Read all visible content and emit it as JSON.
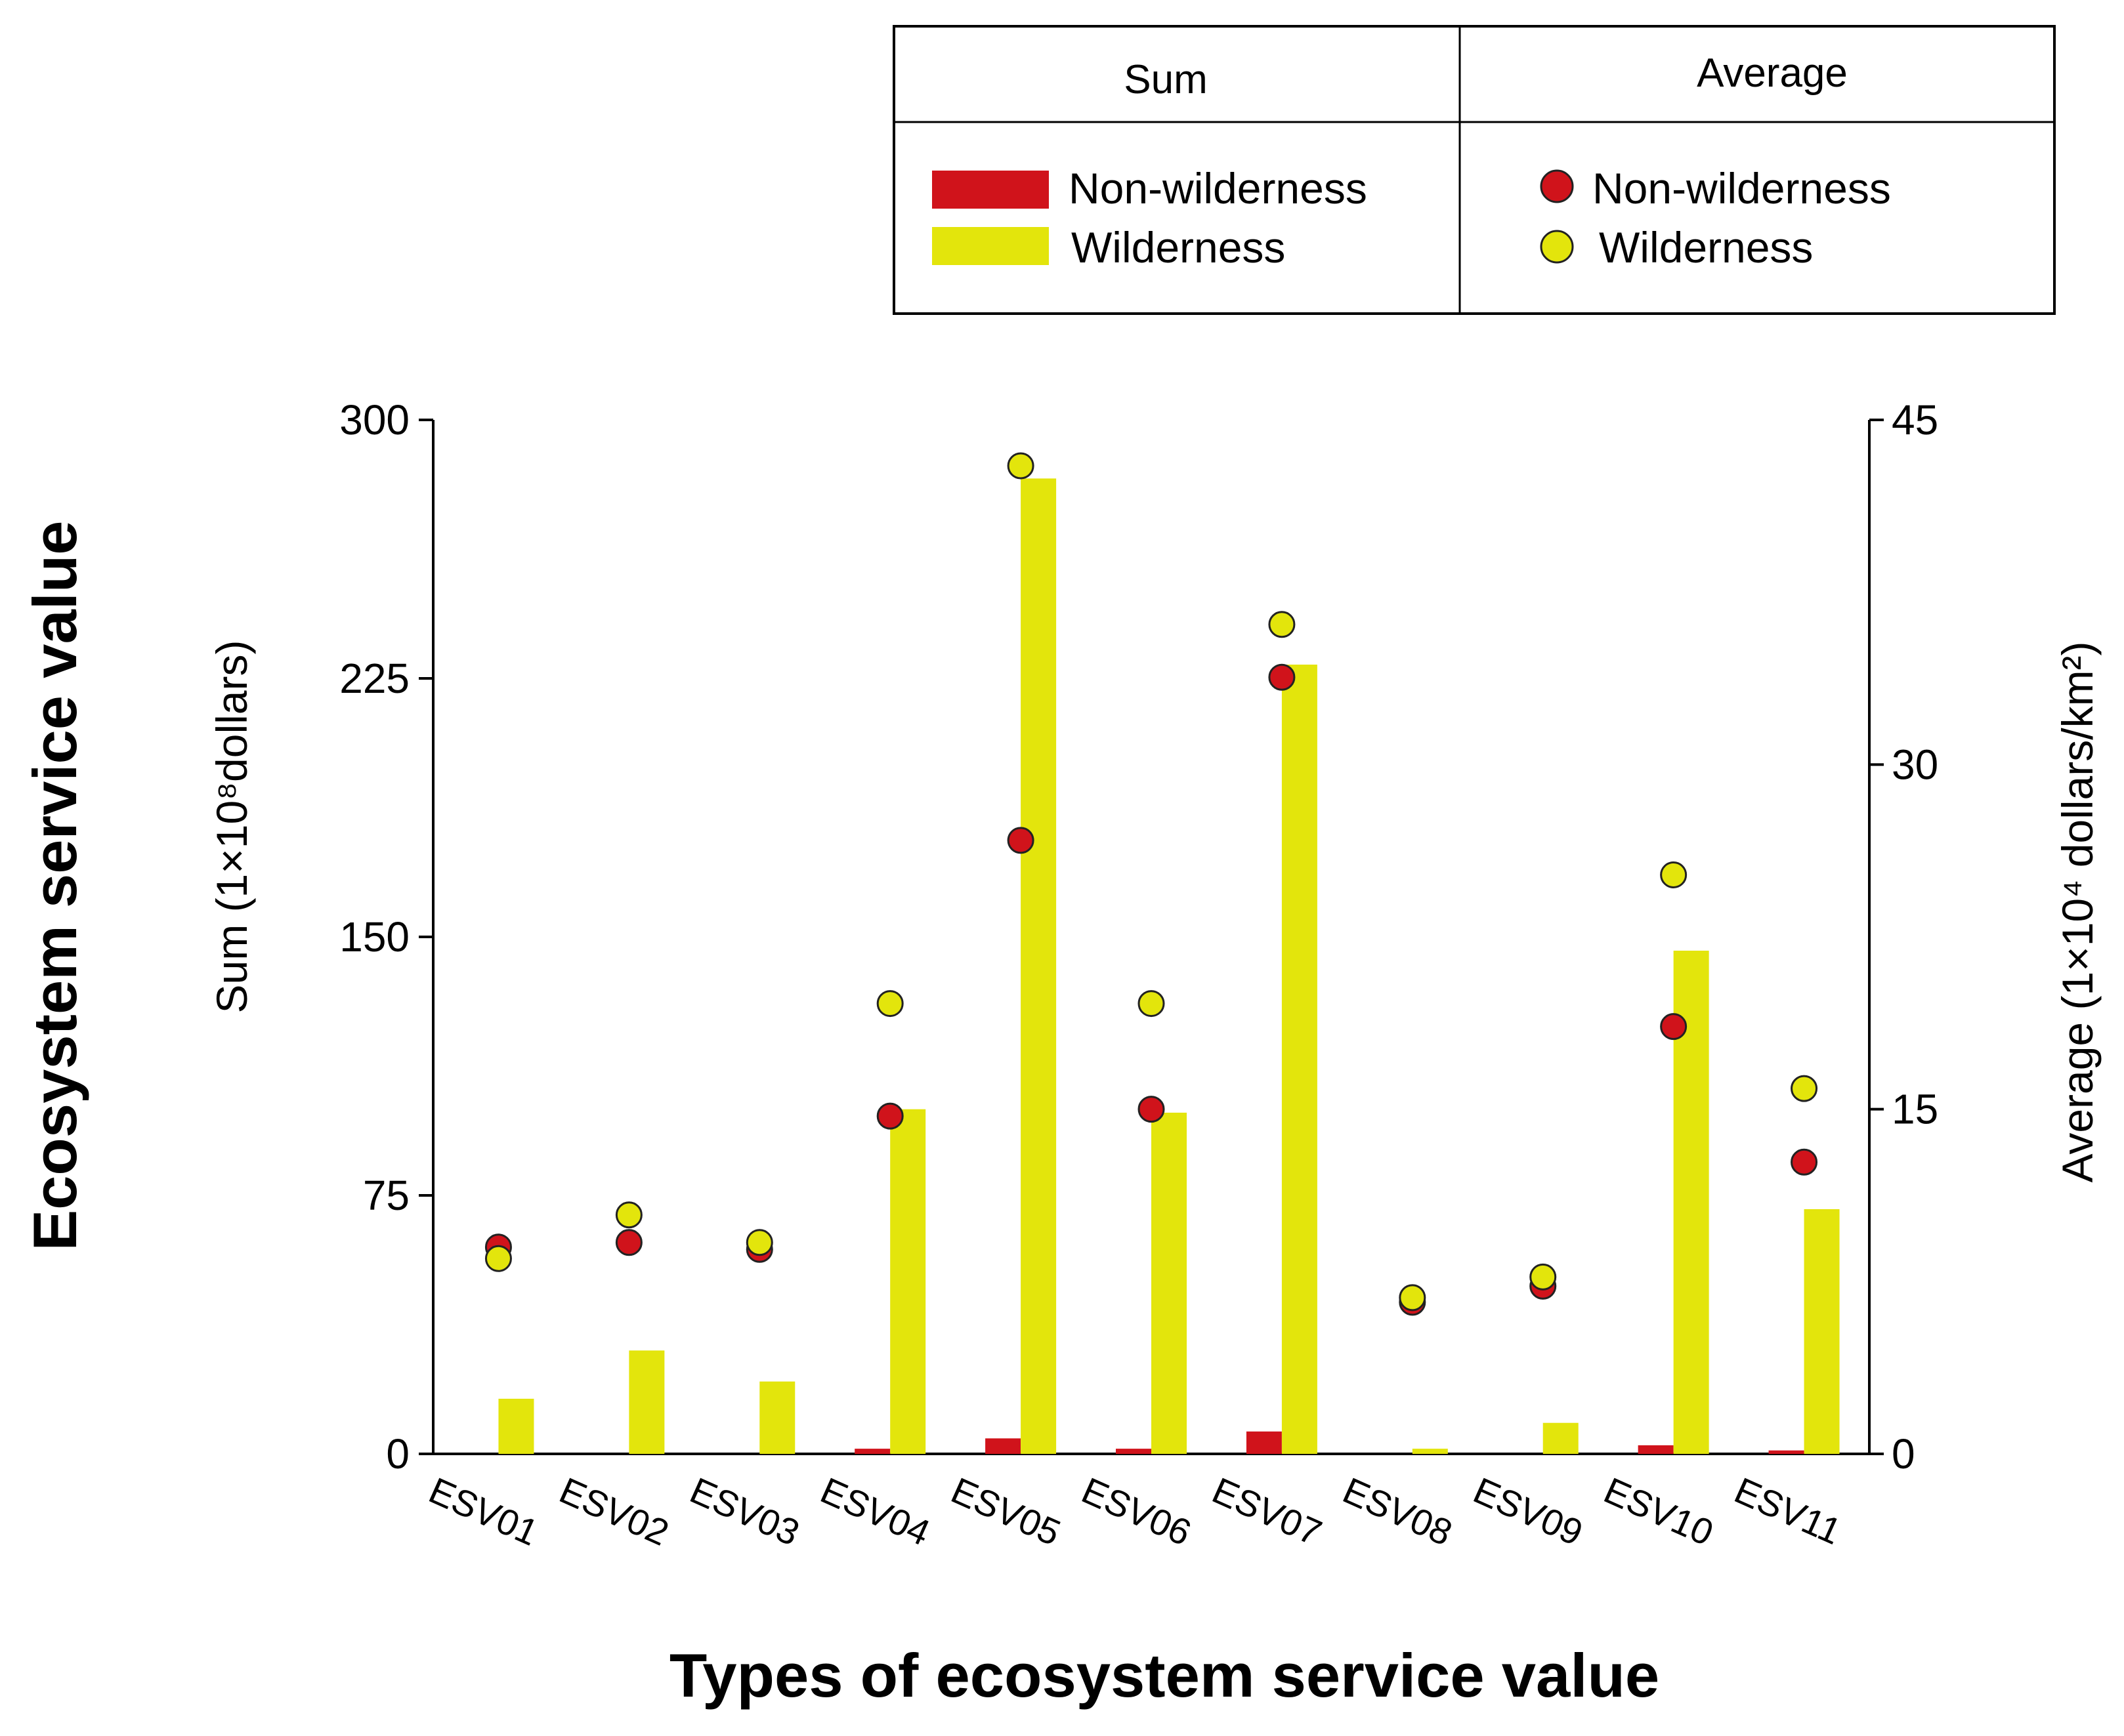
{
  "chart_data": {
    "type": "bar",
    "title": "",
    "xlabel": "Types of ecosystem service value",
    "outer_ylabel": "Ecosystem service value",
    "ylabel_left": "Sum (1×10⁸dollars)",
    "ylabel_right": "Average (1×10⁴ dollars/km²)",
    "ylim_left": [
      0,
      300
    ],
    "ylim_right": [
      0,
      45
    ],
    "yticks_left": [
      "0",
      "75",
      "150",
      "225",
      "300"
    ],
    "yticks_right": [
      "0",
      "15",
      "30",
      "45"
    ],
    "categories": [
      "ESV01",
      "ESV02",
      "ESV03",
      "ESV04",
      "ESV05",
      "ESV06",
      "ESV07",
      "ESV08",
      "ESV09",
      "ESV10",
      "ESV11"
    ],
    "sum_series": [
      {
        "name": "Non-wilderness",
        "color": "#d0131b",
        "values": [
          0,
          0,
          0,
          1.5,
          4.5,
          1.5,
          6.5,
          0,
          0,
          2.5,
          1
        ]
      },
      {
        "name": "Wilderness",
        "color": "#e3e50c",
        "values": [
          16,
          30,
          21,
          100,
          283,
          99,
          229,
          1.5,
          9,
          146,
          71
        ]
      }
    ],
    "average_series": [
      {
        "name": "Non-wilderness",
        "color": "#d0131b",
        "values": [
          9.0,
          9.2,
          8.9,
          14.7,
          26.7,
          15.0,
          33.8,
          6.6,
          7.3,
          18.6,
          12.7
        ]
      },
      {
        "name": "Wilderness",
        "color": "#e3e50c",
        "values": [
          8.5,
          10.4,
          9.2,
          19.6,
          43.0,
          19.6,
          36.1,
          6.8,
          7.7,
          25.2,
          15.9
        ]
      }
    ]
  },
  "legend": {
    "sum_header": "Sum",
    "average_header": "Average",
    "sum_items": [
      "Non-wilderness",
      "Wilderness"
    ],
    "average_items": [
      "Non-wilderness",
      "Wilderness"
    ]
  }
}
